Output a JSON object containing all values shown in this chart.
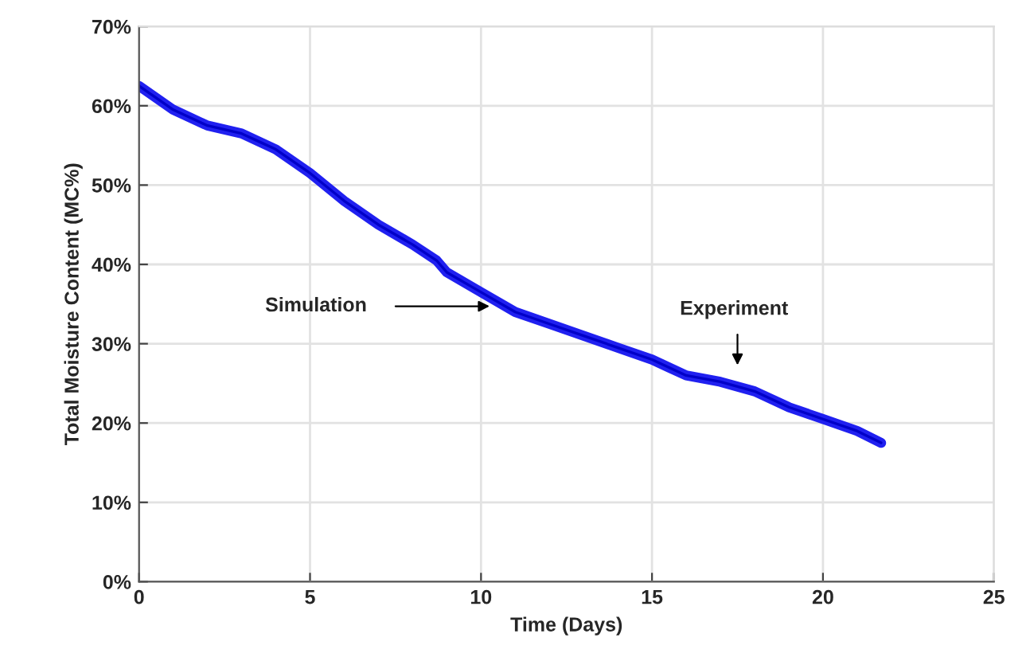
{
  "chart_data": {
    "type": "line",
    "xlabel": "Time (Days)",
    "ylabel": "Total Moisture Content (MC%)",
    "x": [
      0,
      0.5,
      1,
      2,
      3,
      3.5,
      4,
      5,
      6,
      7,
      8,
      8.7,
      9,
      10,
      11,
      12,
      13,
      14,
      15,
      15.5,
      16,
      17,
      18,
      19,
      20,
      21,
      21.7
    ],
    "series": [
      {
        "color": "#2020f0",
        "values": [
          62.5,
          61,
          59.5,
          57.5,
          56.5,
          55.5,
          54.5,
          51.5,
          48,
          45,
          42.5,
          40.5,
          39,
          36.5,
          34,
          32.5,
          31,
          29.5,
          28,
          27,
          26,
          25.2,
          24,
          22,
          20.5,
          19,
          17.5
        ]
      },
      {
        "color": "#0000c8",
        "values": [
          62.5,
          61,
          59.5,
          57.5,
          56.5,
          55.5,
          54.5,
          51.5,
          48,
          45,
          42.5,
          40.5,
          39,
          36.5,
          34,
          32.5,
          31,
          29.5,
          28,
          27,
          26,
          25.2,
          24,
          22,
          20.5,
          19,
          17.5
        ]
      }
    ],
    "annotations": [
      "Simulation",
      "Experiment"
    ],
    "xlim": [
      0,
      25
    ],
    "xticks": [
      0,
      5,
      10,
      15,
      20,
      25
    ],
    "ylim": [
      0,
      70
    ],
    "yticks": [
      {
        "value": 0,
        "label": "0%"
      },
      {
        "value": 10,
        "label": "10%"
      },
      {
        "value": 20,
        "label": "20%"
      },
      {
        "value": 30,
        "label": "30%"
      },
      {
        "value": 40,
        "label": "40%"
      },
      {
        "value": 50,
        "label": "50%"
      },
      {
        "value": 60,
        "label": "60%"
      },
      {
        "value": 70,
        "label": "70%"
      }
    ],
    "grid": true,
    "marker": "none",
    "line_style": "solid"
  }
}
